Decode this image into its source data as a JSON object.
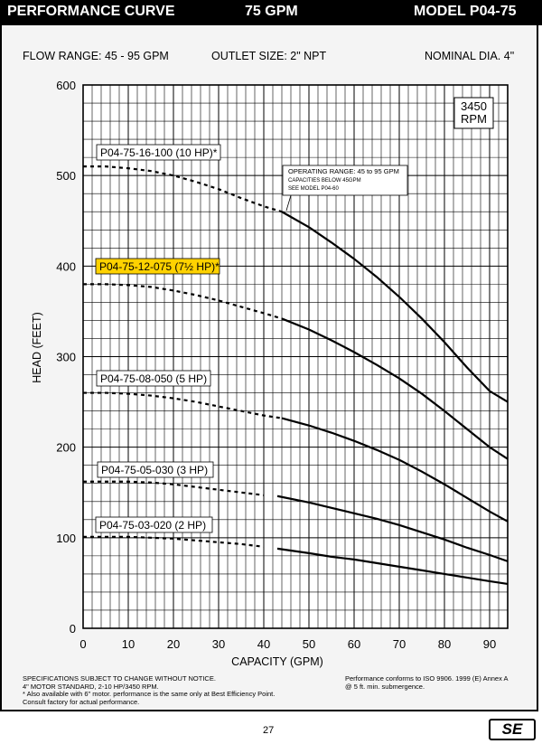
{
  "header": {
    "left": "PERFORMANCE CURVE",
    "center": "75 GPM",
    "right": "MODEL  P04-75"
  },
  "specs": {
    "flow_range": "FLOW RANGE: 45 - 95 GPM",
    "outlet": "OUTLET SIZE: 2\" NPT",
    "nominal": "NOMINAL DIA. 4\""
  },
  "chart_data": {
    "type": "line",
    "xlabel": "CAPACITY (GPM)",
    "ylabel": "HEAD (FEET)",
    "xlim": [
      0,
      94
    ],
    "ylim": [
      0,
      600
    ],
    "xticks": [
      0,
      10,
      20,
      30,
      40,
      50,
      60,
      70,
      80,
      90
    ],
    "yticks": [
      0,
      100,
      200,
      300,
      400,
      500,
      600
    ],
    "grid": true,
    "rpm_box": [
      "3450",
      "RPM"
    ],
    "note": [
      "OPERATING RANGE: 45 to 95 GPM",
      "CAPACITIES BELOW 45GPM",
      "SEE MODEL P04-60"
    ],
    "series": [
      {
        "name": "P04-75-16-100 (10 HP)*",
        "highlight": false,
        "dashed": {
          "x": [
            0,
            5,
            10,
            15,
            20,
            25,
            30,
            35,
            40,
            44
          ],
          "y": [
            510,
            510,
            508,
            505,
            500,
            493,
            485,
            475,
            466,
            460
          ]
        },
        "solid": {
          "x": [
            44,
            50,
            55,
            60,
            65,
            70,
            75,
            80,
            85,
            90,
            94
          ],
          "y": [
            460,
            443,
            426,
            408,
            388,
            366,
            342,
            316,
            288,
            262,
            250
          ]
        }
      },
      {
        "name": "P04-75-12-075 (7½ HP)*",
        "highlight": true,
        "dashed": {
          "x": [
            0,
            5,
            10,
            15,
            20,
            25,
            30,
            35,
            40,
            44
          ],
          "y": [
            380,
            380,
            379,
            377,
            373,
            368,
            362,
            355,
            348,
            342
          ]
        },
        "solid": {
          "x": [
            44,
            50,
            55,
            60,
            65,
            70,
            75,
            80,
            85,
            90,
            94
          ],
          "y": [
            342,
            330,
            318,
            305,
            291,
            276,
            259,
            240,
            220,
            200,
            187
          ]
        }
      },
      {
        "name": "P04-75-08-050 (5 HP)",
        "highlight": false,
        "dashed": {
          "x": [
            0,
            5,
            10,
            15,
            20,
            25,
            30,
            35,
            40,
            44
          ],
          "y": [
            260,
            260,
            259,
            257,
            254,
            250,
            245,
            240,
            235,
            232
          ]
        },
        "solid": {
          "x": [
            44,
            50,
            55,
            60,
            65,
            70,
            75,
            80,
            85,
            90,
            94
          ],
          "y": [
            232,
            224,
            216,
            207,
            197,
            186,
            173,
            159,
            144,
            129,
            118
          ]
        }
      },
      {
        "name": "P04-75-05-030 (3 HP)",
        "highlight": false,
        "dashed": {
          "x": [
            0,
            5,
            10,
            15,
            20,
            25,
            30,
            35,
            40
          ],
          "y": [
            162,
            162,
            162,
            161,
            159,
            156,
            153,
            150,
            147
          ]
        },
        "solid": {
          "x": [
            43,
            50,
            55,
            60,
            65,
            70,
            75,
            80,
            85,
            90,
            94
          ],
          "y": [
            146,
            139,
            133,
            127,
            121,
            114,
            106,
            98,
            89,
            81,
            74
          ]
        }
      },
      {
        "name": "P04-75-03-020 (2 HP)",
        "highlight": false,
        "dashed": {
          "x": [
            0,
            5,
            10,
            15,
            20,
            25,
            30,
            35,
            40
          ],
          "y": [
            101,
            101,
            101,
            100,
            99,
            97,
            95,
            93,
            90
          ]
        },
        "solid": {
          "x": [
            43,
            50,
            55,
            60,
            65,
            70,
            75,
            80,
            85,
            90,
            94
          ],
          "y": [
            88,
            83,
            79,
            76,
            72,
            68,
            64,
            60,
            56,
            52,
            49
          ]
        }
      }
    ]
  },
  "footer": {
    "left": [
      "SPECIFICATIONS SUBJECT TO CHANGE WITHOUT NOTICE.",
      "4\" MOTOR STANDARD, 2-10 HP/3450 RPM.",
      "* Also available with 6\" motor.  performance is the same only at Best Efficiency Point.",
      "Consult factory for actual performance."
    ],
    "right": [
      "Performance conforms to ISO 9906. 1999 (E) Annex A",
      "@ 5 ft. min. submergence."
    ],
    "page": "27",
    "logo": "SE"
  }
}
